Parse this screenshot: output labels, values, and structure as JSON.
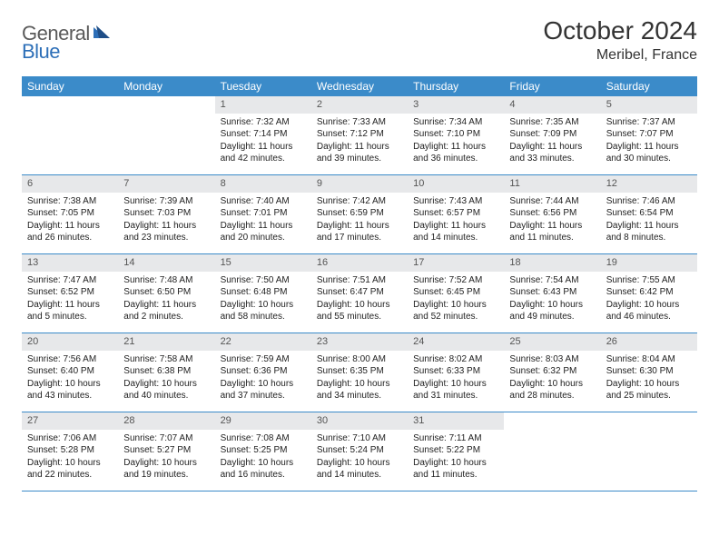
{
  "brand": {
    "general": "General",
    "blue": "Blue"
  },
  "header": {
    "title": "October 2024",
    "location": "Meribel, France"
  },
  "colors": {
    "header_bg": "#3b8bc9",
    "row_divider": "#3b8bc9",
    "daynum_bg": "#e7e8ea",
    "logo_gray": "#5a5a5a",
    "logo_blue": "#2d6fb8"
  },
  "weekdays": [
    "Sunday",
    "Monday",
    "Tuesday",
    "Wednesday",
    "Thursday",
    "Friday",
    "Saturday"
  ],
  "weeks": [
    [
      null,
      null,
      {
        "n": "1",
        "sr": "Sunrise: 7:32 AM",
        "ss": "Sunset: 7:14 PM",
        "dl": "Daylight: 11 hours and 42 minutes."
      },
      {
        "n": "2",
        "sr": "Sunrise: 7:33 AM",
        "ss": "Sunset: 7:12 PM",
        "dl": "Daylight: 11 hours and 39 minutes."
      },
      {
        "n": "3",
        "sr": "Sunrise: 7:34 AM",
        "ss": "Sunset: 7:10 PM",
        "dl": "Daylight: 11 hours and 36 minutes."
      },
      {
        "n": "4",
        "sr": "Sunrise: 7:35 AM",
        "ss": "Sunset: 7:09 PM",
        "dl": "Daylight: 11 hours and 33 minutes."
      },
      {
        "n": "5",
        "sr": "Sunrise: 7:37 AM",
        "ss": "Sunset: 7:07 PM",
        "dl": "Daylight: 11 hours and 30 minutes."
      }
    ],
    [
      {
        "n": "6",
        "sr": "Sunrise: 7:38 AM",
        "ss": "Sunset: 7:05 PM",
        "dl": "Daylight: 11 hours and 26 minutes."
      },
      {
        "n": "7",
        "sr": "Sunrise: 7:39 AM",
        "ss": "Sunset: 7:03 PM",
        "dl": "Daylight: 11 hours and 23 minutes."
      },
      {
        "n": "8",
        "sr": "Sunrise: 7:40 AM",
        "ss": "Sunset: 7:01 PM",
        "dl": "Daylight: 11 hours and 20 minutes."
      },
      {
        "n": "9",
        "sr": "Sunrise: 7:42 AM",
        "ss": "Sunset: 6:59 PM",
        "dl": "Daylight: 11 hours and 17 minutes."
      },
      {
        "n": "10",
        "sr": "Sunrise: 7:43 AM",
        "ss": "Sunset: 6:57 PM",
        "dl": "Daylight: 11 hours and 14 minutes."
      },
      {
        "n": "11",
        "sr": "Sunrise: 7:44 AM",
        "ss": "Sunset: 6:56 PM",
        "dl": "Daylight: 11 hours and 11 minutes."
      },
      {
        "n": "12",
        "sr": "Sunrise: 7:46 AM",
        "ss": "Sunset: 6:54 PM",
        "dl": "Daylight: 11 hours and 8 minutes."
      }
    ],
    [
      {
        "n": "13",
        "sr": "Sunrise: 7:47 AM",
        "ss": "Sunset: 6:52 PM",
        "dl": "Daylight: 11 hours and 5 minutes."
      },
      {
        "n": "14",
        "sr": "Sunrise: 7:48 AM",
        "ss": "Sunset: 6:50 PM",
        "dl": "Daylight: 11 hours and 2 minutes."
      },
      {
        "n": "15",
        "sr": "Sunrise: 7:50 AM",
        "ss": "Sunset: 6:48 PM",
        "dl": "Daylight: 10 hours and 58 minutes."
      },
      {
        "n": "16",
        "sr": "Sunrise: 7:51 AM",
        "ss": "Sunset: 6:47 PM",
        "dl": "Daylight: 10 hours and 55 minutes."
      },
      {
        "n": "17",
        "sr": "Sunrise: 7:52 AM",
        "ss": "Sunset: 6:45 PM",
        "dl": "Daylight: 10 hours and 52 minutes."
      },
      {
        "n": "18",
        "sr": "Sunrise: 7:54 AM",
        "ss": "Sunset: 6:43 PM",
        "dl": "Daylight: 10 hours and 49 minutes."
      },
      {
        "n": "19",
        "sr": "Sunrise: 7:55 AM",
        "ss": "Sunset: 6:42 PM",
        "dl": "Daylight: 10 hours and 46 minutes."
      }
    ],
    [
      {
        "n": "20",
        "sr": "Sunrise: 7:56 AM",
        "ss": "Sunset: 6:40 PM",
        "dl": "Daylight: 10 hours and 43 minutes."
      },
      {
        "n": "21",
        "sr": "Sunrise: 7:58 AM",
        "ss": "Sunset: 6:38 PM",
        "dl": "Daylight: 10 hours and 40 minutes."
      },
      {
        "n": "22",
        "sr": "Sunrise: 7:59 AM",
        "ss": "Sunset: 6:36 PM",
        "dl": "Daylight: 10 hours and 37 minutes."
      },
      {
        "n": "23",
        "sr": "Sunrise: 8:00 AM",
        "ss": "Sunset: 6:35 PM",
        "dl": "Daylight: 10 hours and 34 minutes."
      },
      {
        "n": "24",
        "sr": "Sunrise: 8:02 AM",
        "ss": "Sunset: 6:33 PM",
        "dl": "Daylight: 10 hours and 31 minutes."
      },
      {
        "n": "25",
        "sr": "Sunrise: 8:03 AM",
        "ss": "Sunset: 6:32 PM",
        "dl": "Daylight: 10 hours and 28 minutes."
      },
      {
        "n": "26",
        "sr": "Sunrise: 8:04 AM",
        "ss": "Sunset: 6:30 PM",
        "dl": "Daylight: 10 hours and 25 minutes."
      }
    ],
    [
      {
        "n": "27",
        "sr": "Sunrise: 7:06 AM",
        "ss": "Sunset: 5:28 PM",
        "dl": "Daylight: 10 hours and 22 minutes."
      },
      {
        "n": "28",
        "sr": "Sunrise: 7:07 AM",
        "ss": "Sunset: 5:27 PM",
        "dl": "Daylight: 10 hours and 19 minutes."
      },
      {
        "n": "29",
        "sr": "Sunrise: 7:08 AM",
        "ss": "Sunset: 5:25 PM",
        "dl": "Daylight: 10 hours and 16 minutes."
      },
      {
        "n": "30",
        "sr": "Sunrise: 7:10 AM",
        "ss": "Sunset: 5:24 PM",
        "dl": "Daylight: 10 hours and 14 minutes."
      },
      {
        "n": "31",
        "sr": "Sunrise: 7:11 AM",
        "ss": "Sunset: 5:22 PM",
        "dl": "Daylight: 10 hours and 11 minutes."
      },
      null,
      null
    ]
  ]
}
